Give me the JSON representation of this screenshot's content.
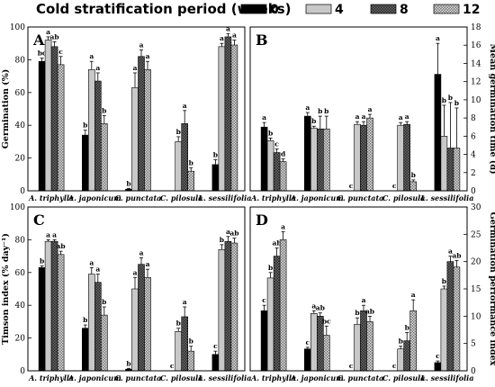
{
  "legend": {
    "title": "Cold stratification period (weeks)",
    "entries": [
      {
        "label": "0",
        "fill": "#000000",
        "pattern": "solid-black"
      },
      {
        "label": "4",
        "fill": "#c8c8c8",
        "pattern": "solid-gray"
      },
      {
        "label": "8",
        "fill": "#404040",
        "pattern": "checker-dark"
      },
      {
        "label": "12",
        "fill": "#a0a0a0",
        "pattern": "checker-light"
      }
    ]
  },
  "chart_data": [
    {
      "type": "bar",
      "panel": "A",
      "ylabel": "Germination (%)",
      "ylabel_side": "left",
      "ylim": [
        0,
        100
      ],
      "yticks": [
        0,
        20,
        40,
        60,
        80,
        100
      ],
      "categories": [
        "A. triphylla",
        "A. japonicum",
        "C. punctata",
        "C. pilosula",
        "L. sessilifolia"
      ],
      "series": [
        {
          "name": "0",
          "values": [
            79,
            34,
            1,
            0,
            16
          ],
          "errors": [
            2,
            3,
            0.5,
            0,
            3
          ],
          "labels": [
            "bc",
            "b",
            "b",
            "",
            "b"
          ]
        },
        {
          "name": "4",
          "values": [
            92,
            74,
            63,
            30,
            88
          ],
          "errors": [
            2,
            5,
            9,
            3,
            2
          ],
          "labels": [
            "a",
            "a",
            "a",
            "b",
            "a"
          ]
        },
        {
          "name": "8",
          "values": [
            88,
            67,
            82,
            41,
            94
          ],
          "errors": [
            3,
            5,
            4,
            8,
            2
          ],
          "labels": [
            "ab",
            "a",
            "a",
            "a",
            "a"
          ]
        },
        {
          "name": "12",
          "values": [
            77,
            41,
            74,
            12,
            89
          ],
          "errors": [
            5,
            5,
            5,
            2,
            3
          ],
          "labels": [
            "c",
            "b",
            "a",
            "b",
            "a"
          ]
        }
      ]
    },
    {
      "type": "bar",
      "panel": "B",
      "ylabel": "Mean germination time (d)",
      "ylabel_side": "right",
      "ylim": [
        0,
        18
      ],
      "yticks": [
        0,
        2,
        4,
        6,
        8,
        10,
        12,
        14,
        16,
        18
      ],
      "categories": [
        "A. triphylla",
        "A. japonicum",
        "C. punctata",
        "C. pilosula",
        "L. sessilifolia"
      ],
      "series": [
        {
          "name": "0",
          "values": [
            7.0,
            8.2,
            0,
            0,
            12.8
          ],
          "errors": [
            0.5,
            0.4,
            0,
            0,
            3.4
          ],
          "labels": [
            "a",
            "a",
            "c",
            "c",
            "a"
          ]
        },
        {
          "name": "4",
          "values": [
            5.5,
            6.9,
            7.3,
            7.2,
            6.0
          ],
          "errors": [
            0.3,
            0.2,
            0.3,
            0.3,
            3.4
          ],
          "labels": [
            "b",
            "b",
            "a",
            "a",
            "b"
          ]
        },
        {
          "name": "8",
          "values": [
            4.2,
            6.8,
            7.2,
            7.3,
            4.7
          ],
          "errors": [
            0.4,
            1.4,
            0.4,
            0.3,
            5.0
          ],
          "labels": [
            "c",
            "b",
            "a",
            "a",
            "b"
          ]
        },
        {
          "name": "12",
          "values": [
            3.2,
            6.8,
            8.0,
            1.0,
            4.7
          ],
          "errors": [
            0.3,
            1.4,
            0.4,
            0.2,
            4.4
          ],
          "labels": [
            "d",
            "b",
            "a",
            "b",
            "b"
          ]
        }
      ]
    },
    {
      "type": "bar",
      "panel": "C",
      "ylabel": "Timson index (% day⁻¹)",
      "ylabel_side": "left",
      "ylim": [
        0,
        100
      ],
      "yticks": [
        0,
        20,
        40,
        60,
        80,
        100
      ],
      "categories": [
        "A. triphylla",
        "A. japonicum",
        "C. punctata",
        "C. pilosula",
        "L. sessilifolia"
      ],
      "series": [
        {
          "name": "0",
          "values": [
            63,
            26,
            1,
            0,
            10
          ],
          "errors": [
            1,
            2,
            0.5,
            0,
            2
          ],
          "labels": [
            "b",
            "b",
            "b",
            "c",
            "c"
          ]
        },
        {
          "name": "4",
          "values": [
            79,
            59,
            50,
            24,
            74
          ],
          "errors": [
            1,
            4,
            7,
            2,
            3
          ],
          "labels": [
            "a",
            "a",
            "a",
            "b",
            "b"
          ]
        },
        {
          "name": "8",
          "values": [
            79,
            54,
            65,
            33,
            79
          ],
          "errors": [
            1,
            5,
            4,
            6,
            3
          ],
          "labels": [
            "a",
            "a",
            "a",
            "a",
            "a"
          ]
        },
        {
          "name": "12",
          "values": [
            71,
            34,
            57,
            12,
            78
          ],
          "errors": [
            2,
            5,
            5,
            3,
            3
          ],
          "labels": [
            "ab",
            "b",
            "a",
            "b",
            "ab"
          ]
        }
      ]
    },
    {
      "type": "bar",
      "panel": "D",
      "ylabel": "Germination performance index",
      "ylabel_side": "right",
      "ylim": [
        0,
        30
      ],
      "yticks": [
        0,
        5,
        10,
        15,
        20,
        25,
        30
      ],
      "categories": [
        "A. triphylla",
        "A. japonicum",
        "C. punctata",
        "C. pilosula",
        "L. sessilifolia"
      ],
      "series": [
        {
          "name": "0",
          "values": [
            11,
            4,
            0,
            0,
            1.5
          ],
          "errors": [
            1,
            0.3,
            0,
            0,
            0.3
          ],
          "labels": [
            "c",
            "c",
            "c",
            "c",
            "c"
          ]
        },
        {
          "name": "4",
          "values": [
            17,
            10.5,
            8.5,
            4,
            15
          ],
          "errors": [
            1,
            0.5,
            1.2,
            0.5,
            0.5
          ],
          "labels": [
            "b",
            "a",
            "b",
            "b",
            "b"
          ]
        },
        {
          "name": "8",
          "values": [
            21,
            10,
            11,
            5.5,
            20
          ],
          "errors": [
            1.5,
            0.6,
            1,
            1.5,
            1
          ],
          "labels": [
            "ab",
            "ab",
            "a",
            "b",
            "a"
          ]
        },
        {
          "name": "12",
          "values": [
            24,
            6.5,
            9,
            11,
            19
          ],
          "errors": [
            1.5,
            1.7,
            1,
            2,
            1.2
          ],
          "labels": [
            "a",
            "bc",
            "ab",
            "a",
            "ab"
          ]
        }
      ]
    }
  ]
}
